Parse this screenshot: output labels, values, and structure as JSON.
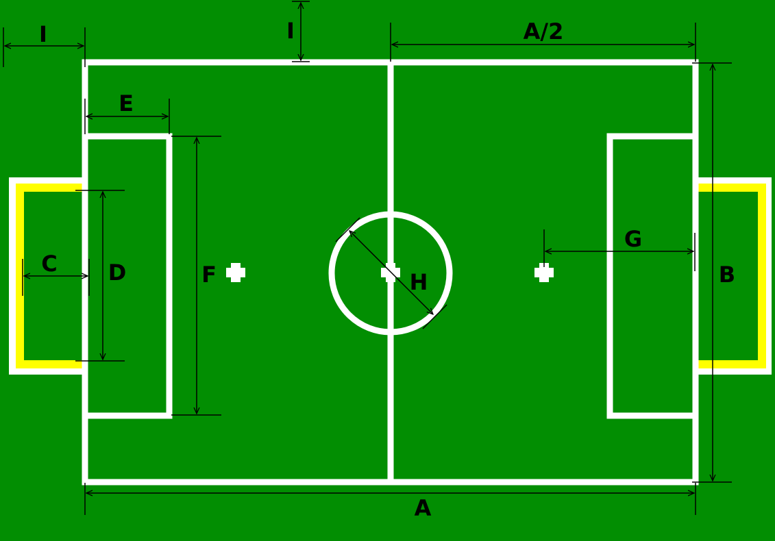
{
  "colors": {
    "field": "#028e02",
    "line": "#ffffff",
    "goal": "#ffff00",
    "dimension": "#000000"
  },
  "labels": {
    "a": "A",
    "a_half": "A/2",
    "b": "B",
    "c": "C",
    "d": "D",
    "e": "E",
    "f": "F",
    "g": "G",
    "h": "H",
    "i_left": "I",
    "i_top": "I"
  },
  "icons": {
    "penalty_mark": "cross-mark",
    "dimension_arrow": "double-arrow"
  }
}
